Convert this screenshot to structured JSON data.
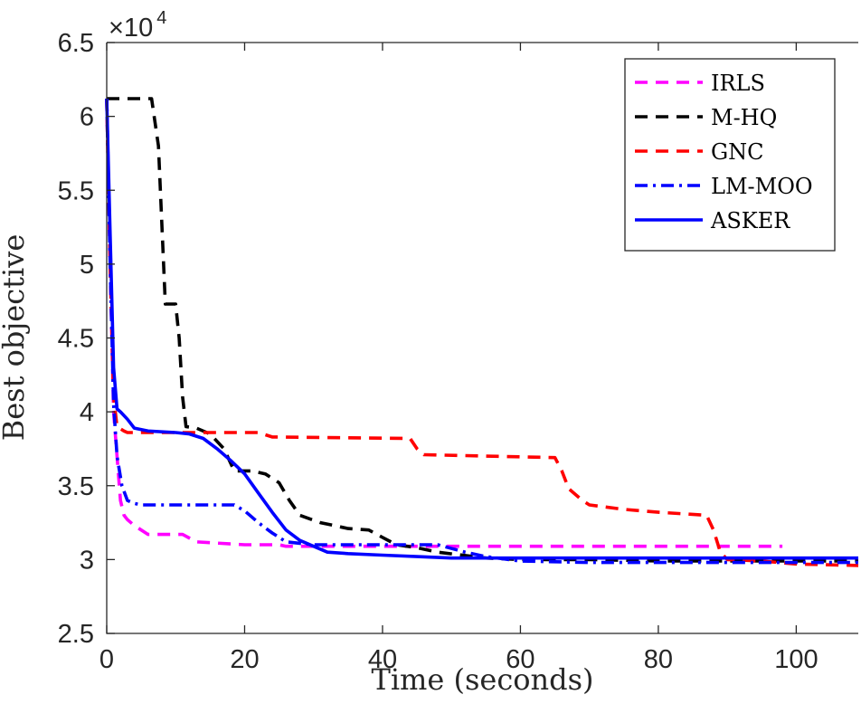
{
  "chart_data": {
    "type": "line",
    "title": "",
    "xlabel": "Time (seconds)",
    "ylabel": "Best objective",
    "xlim": [
      0,
      109
    ],
    "ylim": [
      2.5,
      6.5
    ],
    "xticks": [
      0,
      20,
      40,
      60,
      80,
      100
    ],
    "xtick_labels": [
      "0",
      "20",
      "40",
      "60",
      "80",
      "100"
    ],
    "yticks": [
      2.5,
      3,
      3.5,
      4,
      4.5,
      5,
      5.5,
      6,
      6.5
    ],
    "ytick_labels": [
      "2.5",
      "3",
      "3.5",
      "4",
      "4.5",
      "5",
      "5.5",
      "6",
      "6.5"
    ],
    "y_exponent_base": "×10",
    "y_exponent_power": "4",
    "grid": false,
    "legend_position": "top-right",
    "series": [
      {
        "name": "IRLS",
        "color": "#ff00ff",
        "style": "dashed",
        "x": [
          0,
          0.5,
          1,
          1.5,
          2,
          2.5,
          3,
          4,
          5,
          6,
          8,
          11,
          13,
          20,
          25,
          26,
          30,
          40,
          50,
          60,
          70,
          80,
          90,
          98
        ],
        "y": [
          6.12,
          5.0,
          4.0,
          3.7,
          3.4,
          3.3,
          3.27,
          3.23,
          3.2,
          3.17,
          3.17,
          3.17,
          3.12,
          3.1,
          3.1,
          3.09,
          3.09,
          3.09,
          3.09,
          3.09,
          3.09,
          3.09,
          3.09,
          3.09
        ]
      },
      {
        "name": "M-HQ",
        "color": "#000000",
        "style": "dashed",
        "x": [
          0,
          0.3,
          6.5,
          7.5,
          8.5,
          10,
          10.5,
          11,
          11.5,
          13,
          15,
          17,
          18.5,
          20,
          21,
          23,
          25,
          26.5,
          28,
          31,
          33,
          35,
          38,
          40,
          42,
          45,
          48,
          55,
          60,
          70,
          80,
          90,
          100,
          109
        ],
        "y": [
          6.12,
          6.12,
          6.12,
          5.8,
          4.73,
          4.73,
          4.5,
          4.1,
          3.9,
          3.89,
          3.85,
          3.75,
          3.6,
          3.6,
          3.6,
          3.58,
          3.52,
          3.4,
          3.3,
          3.25,
          3.23,
          3.21,
          3.2,
          3.15,
          3.1,
          3.08,
          3.05,
          3.01,
          3.0,
          3.0,
          2.99,
          2.99,
          2.99,
          2.99
        ]
      },
      {
        "name": "GNC",
        "color": "#ff0000",
        "style": "dashed",
        "x": [
          0,
          0.5,
          1,
          1.5,
          2.5,
          3,
          22,
          24,
          44,
          45,
          46,
          65,
          66,
          67,
          69,
          70,
          75,
          80,
          87,
          88,
          89,
          90,
          95,
          100,
          109
        ],
        "y": [
          6.12,
          5.0,
          4.1,
          3.9,
          3.87,
          3.86,
          3.86,
          3.83,
          3.82,
          3.75,
          3.71,
          3.69,
          3.6,
          3.48,
          3.4,
          3.37,
          3.34,
          3.32,
          3.3,
          3.2,
          3.05,
          3.0,
          2.99,
          2.97,
          2.96
        ]
      },
      {
        "name": "LM-MOO",
        "color": "#0000ff",
        "style": "dashdot",
        "x": [
          0,
          0.5,
          1,
          1.5,
          2.2,
          3,
          4,
          5,
          10,
          15,
          18.5,
          20,
          22,
          24,
          26,
          28,
          30,
          35,
          40,
          45,
          48,
          52,
          55,
          60,
          70,
          80,
          90,
          100,
          109
        ],
        "y": [
          6.12,
          5.0,
          4.05,
          3.7,
          3.5,
          3.4,
          3.38,
          3.37,
          3.37,
          3.37,
          3.37,
          3.33,
          3.25,
          3.18,
          3.12,
          3.11,
          3.1,
          3.1,
          3.1,
          3.1,
          3.1,
          3.05,
          3.02,
          2.99,
          2.98,
          2.98,
          2.98,
          2.98,
          2.98
        ]
      },
      {
        "name": "ASKER",
        "color": "#0000ff",
        "style": "solid",
        "x": [
          0,
          0.5,
          1,
          1.5,
          2,
          3,
          4,
          6,
          10,
          12,
          14,
          16,
          18,
          20,
          22,
          24,
          26,
          28,
          30,
          32,
          35,
          40,
          45,
          50,
          55,
          60,
          70,
          80,
          90,
          100,
          109
        ],
        "y": [
          6.12,
          5.2,
          4.3,
          4.02,
          4.0,
          3.95,
          3.89,
          3.87,
          3.86,
          3.85,
          3.82,
          3.75,
          3.67,
          3.58,
          3.45,
          3.32,
          3.2,
          3.13,
          3.09,
          3.05,
          3.04,
          3.03,
          3.02,
          3.01,
          3.01,
          3.01,
          3.01,
          3.01,
          3.01,
          3.01,
          3.01
        ]
      }
    ]
  }
}
